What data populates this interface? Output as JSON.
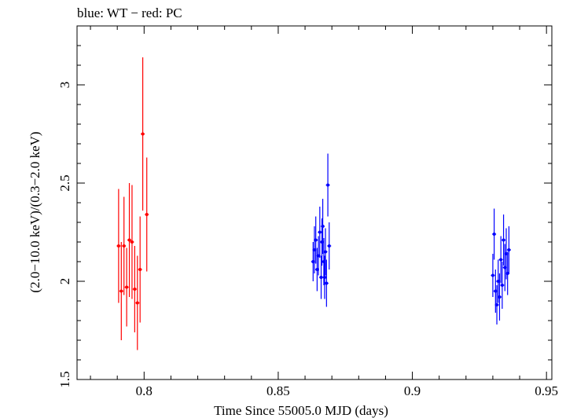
{
  "chart_data": {
    "type": "scatter",
    "title": "blue: WT − red: PC",
    "xlabel": "Time Since 55005.0 MJD (days)",
    "ylabel": "(2.0−10.0 keV)/(0.3−2.0 keV)",
    "xlim": [
      0.775,
      0.952
    ],
    "ylim": [
      1.5,
      3.3
    ],
    "xticks": [
      0.8,
      0.85,
      0.9,
      0.95
    ],
    "xtick_labels": [
      "0.8",
      "0.85",
      "0.9",
      "0.95"
    ],
    "yticks": [
      1.5,
      2,
      2.5,
      3
    ],
    "ytick_labels": [
      "1.5",
      "2",
      "2.5",
      "3"
    ],
    "series": [
      {
        "name": "PC",
        "color": "#ff0000",
        "points": [
          {
            "x": 0.7905,
            "y": 2.18,
            "err": 0.29
          },
          {
            "x": 0.7915,
            "y": 1.95,
            "err": 0.25
          },
          {
            "x": 0.7925,
            "y": 2.18,
            "err": 0.25
          },
          {
            "x": 0.7935,
            "y": 1.97,
            "err": 0.2
          },
          {
            "x": 0.7945,
            "y": 2.21,
            "err": 0.29
          },
          {
            "x": 0.7955,
            "y": 2.2,
            "err": 0.29
          },
          {
            "x": 0.7965,
            "y": 1.96,
            "err": 0.22
          },
          {
            "x": 0.7975,
            "y": 1.89,
            "err": 0.24
          },
          {
            "x": 0.7985,
            "y": 2.06,
            "err": 0.27
          },
          {
            "x": 0.7995,
            "y": 2.75,
            "err": 0.39
          },
          {
            "x": 0.801,
            "y": 2.34,
            "err": 0.29
          }
        ]
      },
      {
        "name": "WT",
        "color": "#0000ff",
        "points": [
          {
            "x": 0.863,
            "y": 2.1,
            "err": 0.1
          },
          {
            "x": 0.8635,
            "y": 2.16,
            "err": 0.12
          },
          {
            "x": 0.864,
            "y": 2.21,
            "err": 0.12
          },
          {
            "x": 0.8645,
            "y": 2.06,
            "err": 0.11
          },
          {
            "x": 0.865,
            "y": 2.13,
            "err": 0.1
          },
          {
            "x": 0.8655,
            "y": 2.25,
            "err": 0.13
          },
          {
            "x": 0.866,
            "y": 2.02,
            "err": 0.11
          },
          {
            "x": 0.8663,
            "y": 2.2,
            "err": 0.12
          },
          {
            "x": 0.8666,
            "y": 2.28,
            "err": 0.14
          },
          {
            "x": 0.867,
            "y": 2.1,
            "err": 0.12
          },
          {
            "x": 0.8673,
            "y": 2.02,
            "err": 0.11
          },
          {
            "x": 0.8676,
            "y": 2.15,
            "err": 0.12
          },
          {
            "x": 0.868,
            "y": 1.99,
            "err": 0.12
          },
          {
            "x": 0.8685,
            "y": 2.49,
            "err": 0.16
          },
          {
            "x": 0.869,
            "y": 2.18,
            "err": 0.12
          },
          {
            "x": 0.93,
            "y": 2.03,
            "err": 0.11
          },
          {
            "x": 0.9305,
            "y": 2.24,
            "err": 0.13
          },
          {
            "x": 0.931,
            "y": 1.95,
            "err": 0.11
          },
          {
            "x": 0.9315,
            "y": 1.88,
            "err": 0.1
          },
          {
            "x": 0.932,
            "y": 2.0,
            "err": 0.11
          },
          {
            "x": 0.9325,
            "y": 1.92,
            "err": 0.12
          },
          {
            "x": 0.933,
            "y": 2.11,
            "err": 0.12
          },
          {
            "x": 0.9335,
            "y": 1.98,
            "err": 0.12
          },
          {
            "x": 0.934,
            "y": 2.21,
            "err": 0.13
          },
          {
            "x": 0.9345,
            "y": 2.07,
            "err": 0.12
          },
          {
            "x": 0.935,
            "y": 2.14,
            "err": 0.13
          },
          {
            "x": 0.9355,
            "y": 2.04,
            "err": 0.11
          },
          {
            "x": 0.936,
            "y": 2.16,
            "err": 0.12
          }
        ]
      }
    ]
  }
}
